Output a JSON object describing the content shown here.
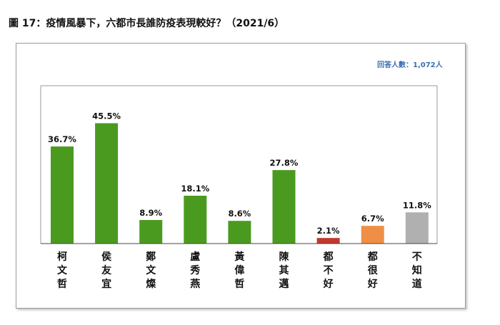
{
  "figure_title": "圖 17：疫情風暴下，六都市長誰防疫表現較好？（2021/6）",
  "respondents_note": "回答人數：1,072人",
  "chart_data": {
    "type": "bar",
    "title": "圖 17：疫情風暴下，六都市長誰防疫表現較好？（2021/6）",
    "categories": [
      "柯文哲",
      "侯友宜",
      "鄭文燦",
      "盧秀燕",
      "黃偉哲",
      "陳其邁",
      "都不好",
      "都很好",
      "不知道"
    ],
    "values": [
      36.7,
      45.5,
      8.9,
      18.1,
      8.6,
      27.8,
      2.1,
      6.7,
      11.8
    ],
    "value_labels": [
      "36.7%",
      "45.5%",
      "8.9%",
      "18.1%",
      "8.6%",
      "27.8%",
      "2.1%",
      "6.7%",
      "11.8%"
    ],
    "unit": "%",
    "ylim": [
      0,
      52
    ],
    "grid": false,
    "legend": "none",
    "colors": [
      "#4a9a1f",
      "#4a9a1f",
      "#4a9a1f",
      "#4a9a1f",
      "#4a9a1f",
      "#4a9a1f",
      "#c0392b",
      "#ef8f45",
      "#b0b0b0"
    ]
  }
}
